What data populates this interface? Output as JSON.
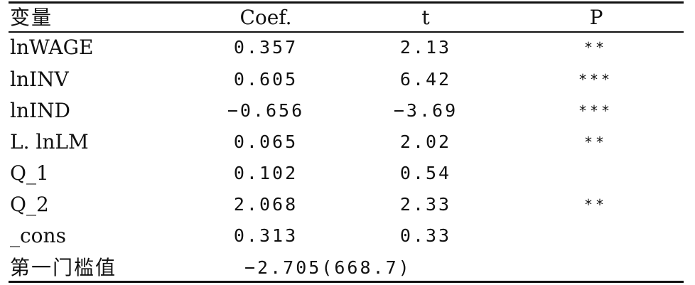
{
  "table": {
    "headers": {
      "variable": "变量",
      "coef": "Coef.",
      "t": "t",
      "p": "P"
    },
    "rows": [
      {
        "variable": "lnWAGE",
        "coef": "0.357",
        "t": "2.13",
        "p": "**"
      },
      {
        "variable": "lnINV",
        "coef": "0.605",
        "t": "6.42",
        "p": "***"
      },
      {
        "variable": "lnIND",
        "coef": "−0.656",
        "t": "−3.69",
        "p": "***"
      },
      {
        "variable": "L. lnLM",
        "coef": "0.065",
        "t": "2.02",
        "p": "**"
      },
      {
        "variable": "Q_1",
        "coef": "0.102",
        "t": "0.54",
        "p": ""
      },
      {
        "variable": "Q_2",
        "coef": "2.068",
        "t": "2.33",
        "p": "**"
      },
      {
        "variable": "_cons",
        "coef": "0.313",
        "t": "0.33",
        "p": ""
      }
    ],
    "threshold": {
      "label": "第一门槛值",
      "value": "−2.705(668.7)"
    }
  }
}
